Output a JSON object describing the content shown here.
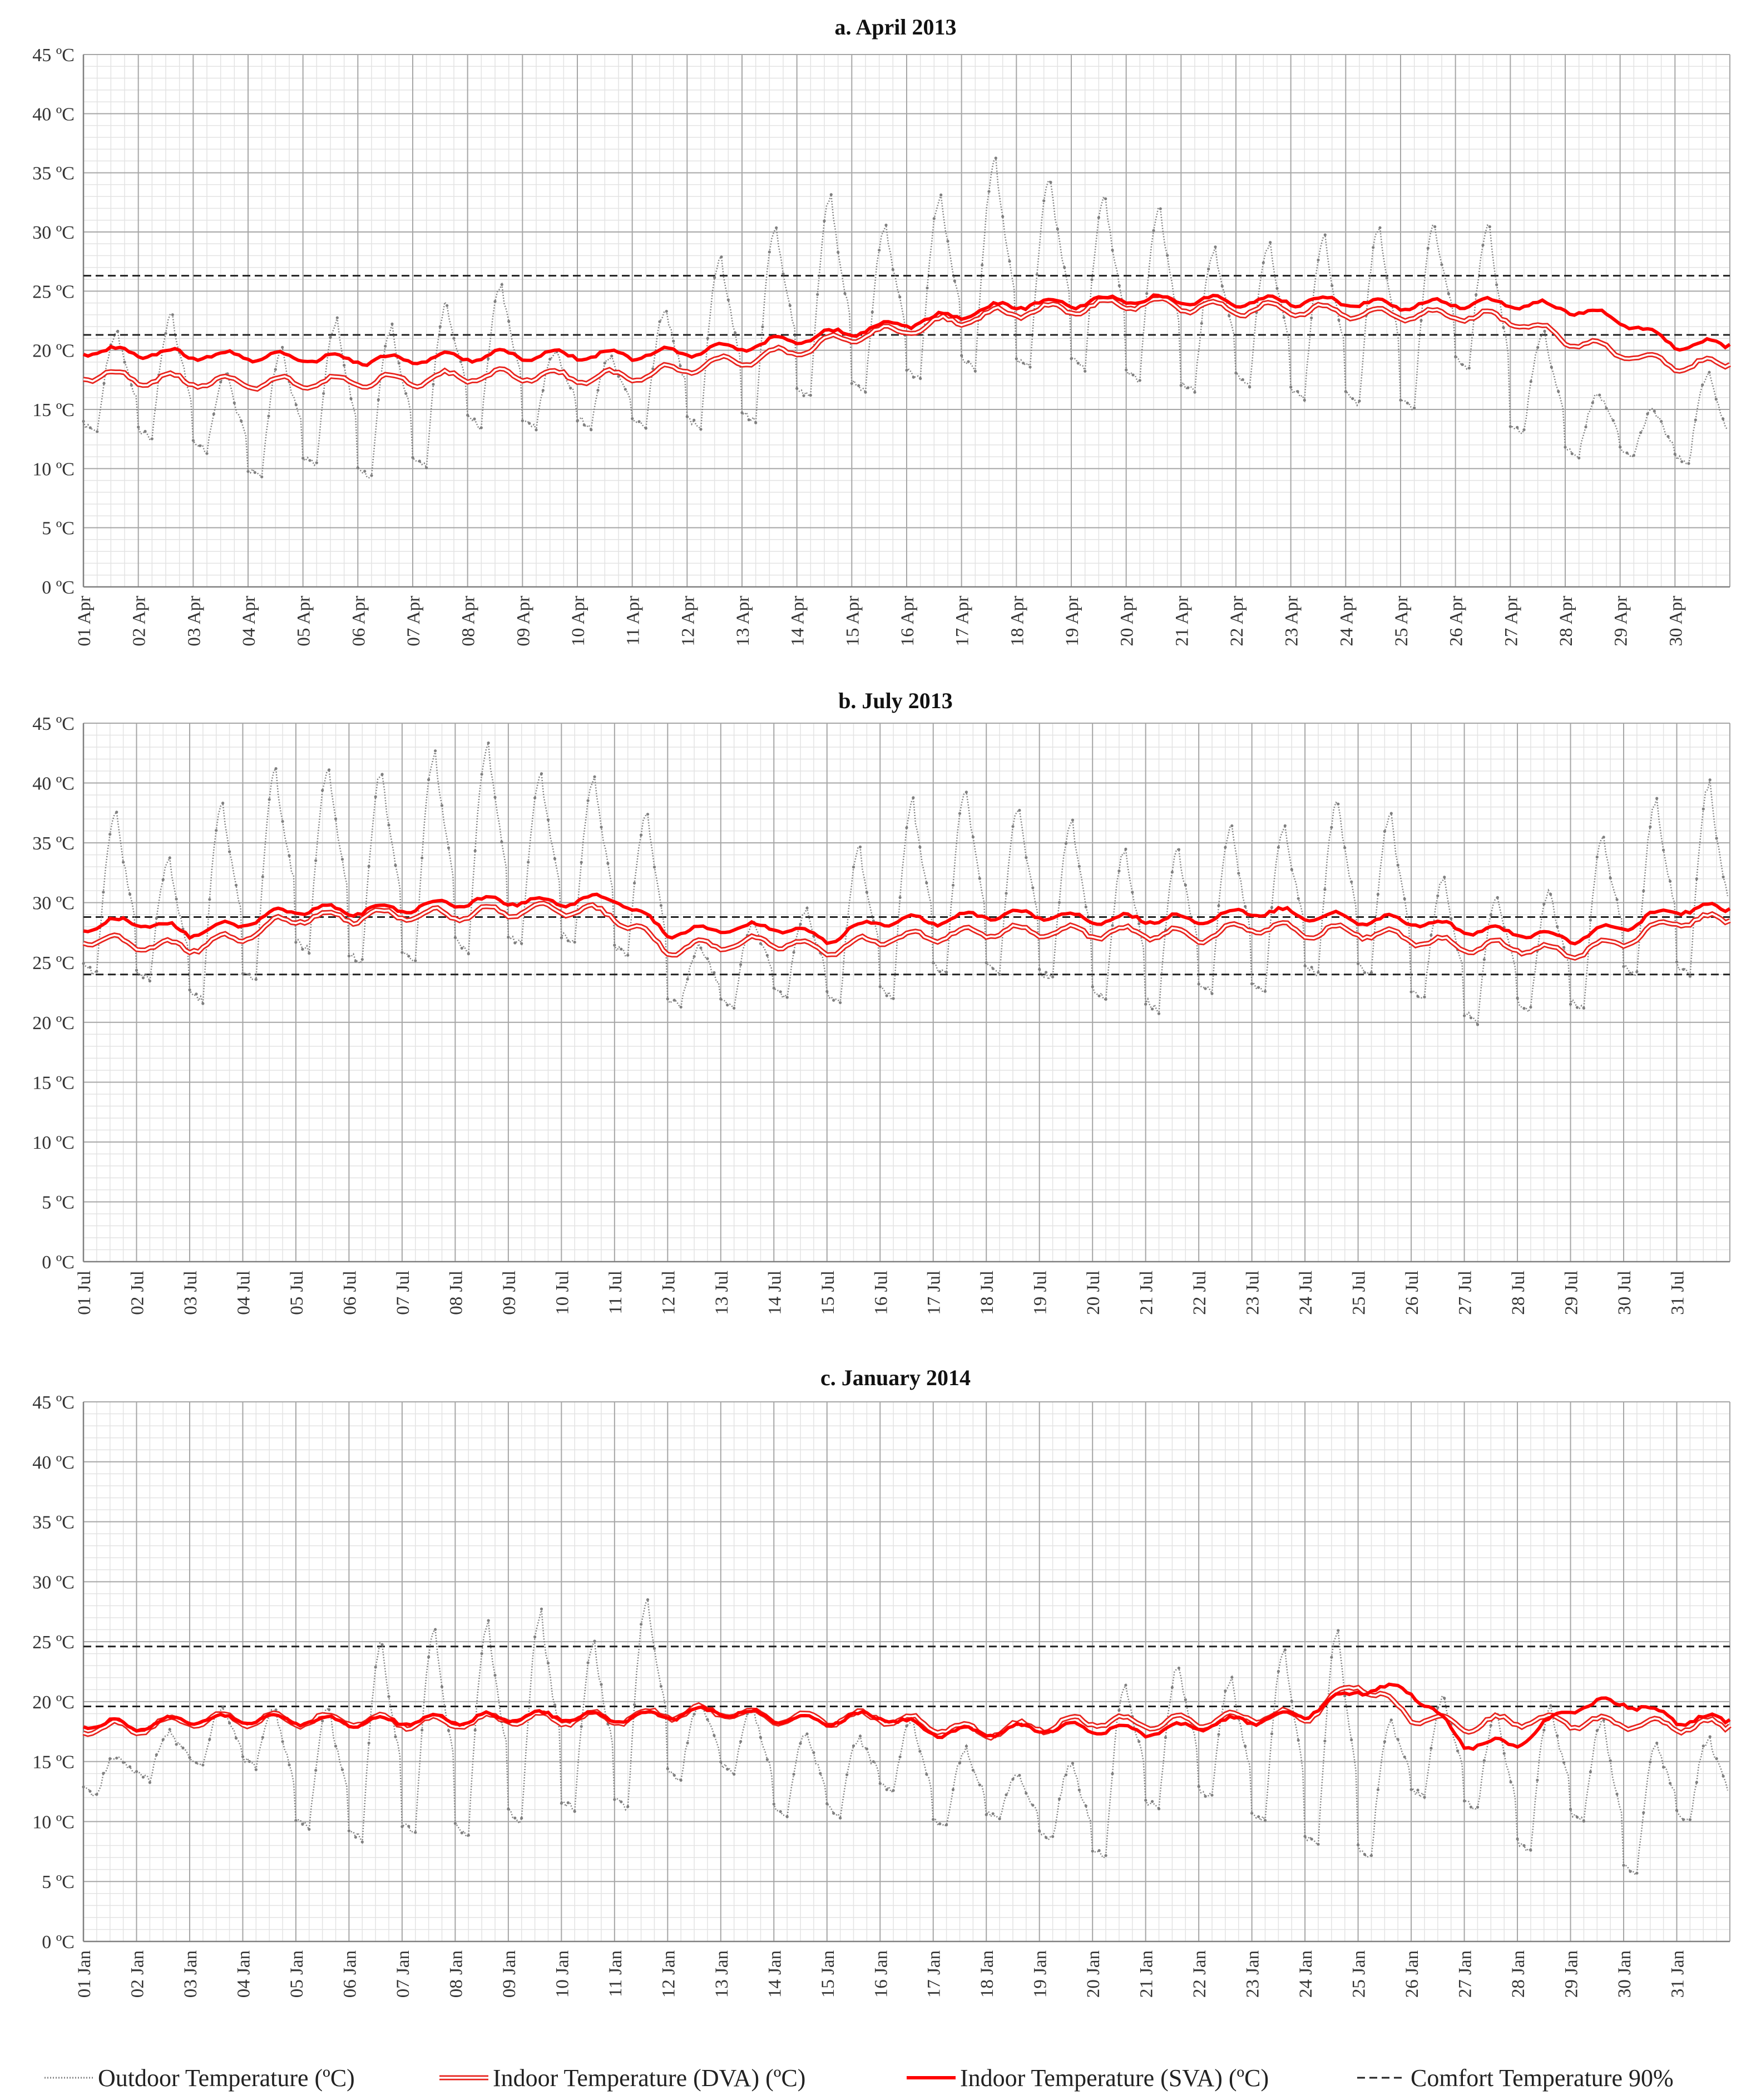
{
  "colors": {
    "outdoor": "#7f7f7f",
    "dva": "#e8231d",
    "sva": "#ff0000",
    "comfort": "#222222",
    "grid_major": "#a6a6a6",
    "grid_minor": "#e3e3e3"
  },
  "legend": {
    "items": [
      {
        "label": "Outdoor Temperature (ºC)",
        "style": "dotted-grey-line"
      },
      {
        "label": "Indoor Temperature (DVA) (ºC)",
        "style": "double-red-line"
      },
      {
        "label": "Indoor Temperature (SVA) (ºC)",
        "style": "solid-red-line"
      },
      {
        "label": "Comfort Temperature 90%",
        "style": "dashed-black-line"
      }
    ]
  },
  "chart_data": [
    {
      "type": "line",
      "title": "a. April 2013",
      "xlabel": "",
      "ylabel": "",
      "ylim": [
        0,
        45
      ],
      "y_ticks": [
        "0 ºC",
        "5 ºC",
        "10 ºC",
        "15 ºC",
        "20 ºC",
        "25 ºC",
        "30 ºC",
        "35 ºC",
        "40 ºC",
        "45 ºC"
      ],
      "x_ticks": [
        "01 Apr",
        "02 Apr",
        "03 Apr",
        "04 Apr",
        "05 Apr",
        "06 Apr",
        "07 Apr",
        "08 Apr",
        "09 Apr",
        "10 Apr",
        "11 Apr",
        "12 Apr",
        "13 Apr",
        "14 Apr",
        "15 Apr",
        "16 Apr",
        "17 Apr",
        "18 Apr",
        "19 Apr",
        "20 Apr",
        "21 Apr",
        "22 Apr",
        "23 Apr",
        "24 Apr",
        "25 Apr",
        "26 Apr",
        "27 Apr",
        "28 Apr",
        "29 Apr",
        "30 Apr"
      ],
      "days": 30,
      "comfort_band": [
        21.3,
        26.3
      ],
      "series": [
        {
          "name": "Outdoor Temperature (ºC)",
          "daily_min": [
            13,
            12.5,
            11.5,
            9.2,
            10.2,
            9.3,
            10.2,
            13.5,
            13.5,
            13.5,
            13.5,
            13.5,
            14,
            16,
            16.5,
            17.5,
            18.5,
            18.5,
            18.5,
            17.5,
            16.5,
            17,
            16,
            15.5,
            15,
            18.5,
            13,
            11,
            11,
            10.3
          ],
          "daily_max": [
            21.5,
            23,
            18,
            20,
            22.5,
            22,
            24,
            25.5,
            20,
            19.5,
            23.5,
            28,
            30.5,
            33,
            30.5,
            33,
            36,
            34.5,
            33,
            32,
            28.5,
            29,
            29.5,
            30.5,
            30.5,
            30.5,
            21.5,
            16.5,
            15,
            18
          ]
        },
        {
          "name": "Indoor Temperature (DVA) (ºC)",
          "daily": [
            18,
            17.6,
            17.4,
            17.2,
            17.3,
            17.4,
            17.5,
            17.8,
            17.9,
            17.7,
            17.8,
            18.5,
            19.2,
            20,
            21.2,
            21.8,
            22.6,
            23.3,
            23.5,
            24,
            23.8,
            23.4,
            23.5,
            23.2,
            23,
            23,
            22.6,
            21,
            19.8,
            18.8
          ]
        },
        {
          "name": "Indoor Temperature (SVA) (ºC)",
          "daily": [
            20,
            19.8,
            19.6,
            19.5,
            19.4,
            19.2,
            19.2,
            19.5,
            19.6,
            19.6,
            19.6,
            19.9,
            20.3,
            20.9,
            21.6,
            22.3,
            23,
            23.9,
            24,
            24.3,
            24.2,
            24.1,
            24.2,
            24.1,
            23.8,
            24,
            23.9,
            23.6,
            22.6,
            20.5
          ]
        }
      ]
    },
    {
      "type": "line",
      "title": "b. July 2013",
      "xlabel": "",
      "ylabel": "",
      "ylim": [
        0,
        45
      ],
      "y_ticks": [
        "0 ºC",
        "5 ºC",
        "10 ºC",
        "15 ºC",
        "20 ºC",
        "25 ºC",
        "30 ºC",
        "35 ºC",
        "40 ºC",
        "45 ºC"
      ],
      "x_ticks": [
        "01 Jul",
        "02 Jul",
        "03 Jul",
        "04 Jul",
        "05 Jul",
        "06 Jul",
        "07 Jul",
        "08 Jul",
        "09 Jul",
        "10 Jul",
        "11 Jul",
        "12 Jul",
        "13 Jul",
        "14 Jul",
        "15 Jul",
        "16 Jul",
        "17 Jul",
        "18 Jul",
        "19 Jul",
        "20 Jul",
        "21 Jul",
        "22 Jul",
        "23 Jul",
        "24 Jul",
        "25 Jul",
        "26 Jul",
        "27 Jul",
        "28 Jul",
        "29 Jul",
        "30 Jul",
        "31 Jul"
      ],
      "days": 31,
      "comfort_band": [
        24,
        28.8
      ],
      "series": [
        {
          "name": "Outdoor Temperature (ºC)",
          "daily_min": [
            24,
            23.5,
            21.8,
            23.5,
            26,
            25,
            25,
            26,
            26.5,
            26.5,
            25.5,
            21.2,
            21.2,
            22,
            21.5,
            22,
            24,
            24,
            23.5,
            22,
            21,
            22.5,
            22.5,
            24,
            24,
            22,
            20,
            21,
            21,
            24,
            24
          ],
          "daily_max": [
            37.5,
            33.5,
            38.5,
            41,
            41.2,
            41,
            42.5,
            43.2,
            40.5,
            40.5,
            37.5,
            26.5,
            28.5,
            29.5,
            34.5,
            38.5,
            39.5,
            38,
            37,
            34.5,
            34.5,
            36.5,
            36.5,
            38.5,
            37.5,
            32,
            30.5,
            31,
            35.5,
            38.5,
            40
          ]
        },
        {
          "name": "Indoor Temperature (DVA) (ºC)",
          "daily": [
            27,
            26.5,
            26.3,
            27.2,
            28.8,
            28.8,
            29,
            29,
            29.3,
            29.5,
            29,
            26,
            26.5,
            26.8,
            26,
            27,
            27.2,
            27.6,
            27.6,
            27.5,
            27.5,
            27.2,
            28,
            27.6,
            27.6,
            27,
            26.3,
            26.3,
            25.8,
            26.8,
            28.5
          ]
        },
        {
          "name": "Indoor Temperature (SVA) (ºC)",
          "daily": [
            28,
            28.5,
            27.5,
            28.3,
            29.5,
            29.3,
            29.5,
            30,
            30.2,
            30,
            30.5,
            27.5,
            27.8,
            28,
            27,
            28.5,
            28.5,
            29,
            29,
            28.6,
            28.7,
            28.5,
            29.3,
            29,
            28.6,
            28.5,
            27.8,
            27.5,
            27,
            28,
            29.5
          ]
        }
      ]
    },
    {
      "type": "line",
      "title": "c. January 2014",
      "xlabel": "",
      "ylabel": "",
      "ylim": [
        0,
        45
      ],
      "y_ticks": [
        "0 ºC",
        "5 ºC",
        "10 ºC",
        "15 ºC",
        "20 ºC",
        "25 ºC",
        "30 ºC",
        "35 ºC",
        "40 ºC",
        "45 ºC"
      ],
      "x_ticks": [
        "01 Jan",
        "02 Jan",
        "03 Jan",
        "04 Jan",
        "05 Jan",
        "06 Jan",
        "07 Jan",
        "08 Jan",
        "09 Jan",
        "10 Jan",
        "11 Jan",
        "12 Jan",
        "13 Jan",
        "14 Jan",
        "15 Jan",
        "16 Jan",
        "17 Jan",
        "18 Jan",
        "19 Jan",
        "20 Jan",
        "21 Jan",
        "22 Jan",
        "23 Jan",
        "24 Jan",
        "25 Jan",
        "26 Jan",
        "27 Jan",
        "28 Jan",
        "29 Jan",
        "30 Jan",
        "31 Jan"
      ],
      "days": 31,
      "comfort_band": [
        19.6,
        24.6
      ],
      "series": [
        {
          "name": "Outdoor Temperature (ºC)",
          "daily_min": [
            12,
            13.5,
            14.5,
            14.5,
            9.5,
            8.5,
            9,
            8.8,
            10,
            11,
            11,
            13.5,
            14,
            10.5,
            10.5,
            12.5,
            9.5,
            10,
            8.5,
            7,
            11,
            12,
            10,
            8,
            7,
            12,
            11,
            7.5,
            10,
            5.5,
            10
          ],
          "daily_max": [
            15.5,
            17.5,
            19.5,
            19.5,
            19.5,
            25,
            26,
            26.5,
            27.5,
            25,
            28.5,
            20,
            19.5,
            17.5,
            17,
            18.5,
            16,
            14,
            15,
            21.5,
            23,
            22,
            24.5,
            26,
            18.5,
            20.5,
            19,
            19.5,
            18.5,
            16.5,
            17
          ]
        },
        {
          "name": "Indoor Temperature (DVA) (ºC)",
          "daily": [
            17.8,
            17.8,
            18.5,
            18.5,
            18.5,
            18.5,
            18.3,
            18.3,
            18.6,
            18.6,
            18.6,
            19,
            19.2,
            18.7,
            18.5,
            18.8,
            18,
            17.5,
            18,
            18.4,
            18.2,
            18.4,
            18.8,
            18.7,
            21.5,
            18.8,
            18,
            18.5,
            18.3,
            18.2,
            18
          ]
        },
        {
          "name": "Indoor Temperature (SVA) (ºC)",
          "daily": [
            18.2,
            18,
            18.5,
            18.5,
            18.5,
            18.3,
            18.4,
            18.5,
            18.7,
            18.8,
            18.6,
            18.9,
            19.2,
            18.7,
            18.4,
            18.9,
            17.5,
            17.5,
            17.8,
            17.8,
            17.5,
            18,
            18.5,
            19,
            21,
            21,
            16.5,
            16.5,
            19.5,
            20,
            18.5
          ]
        }
      ]
    }
  ]
}
